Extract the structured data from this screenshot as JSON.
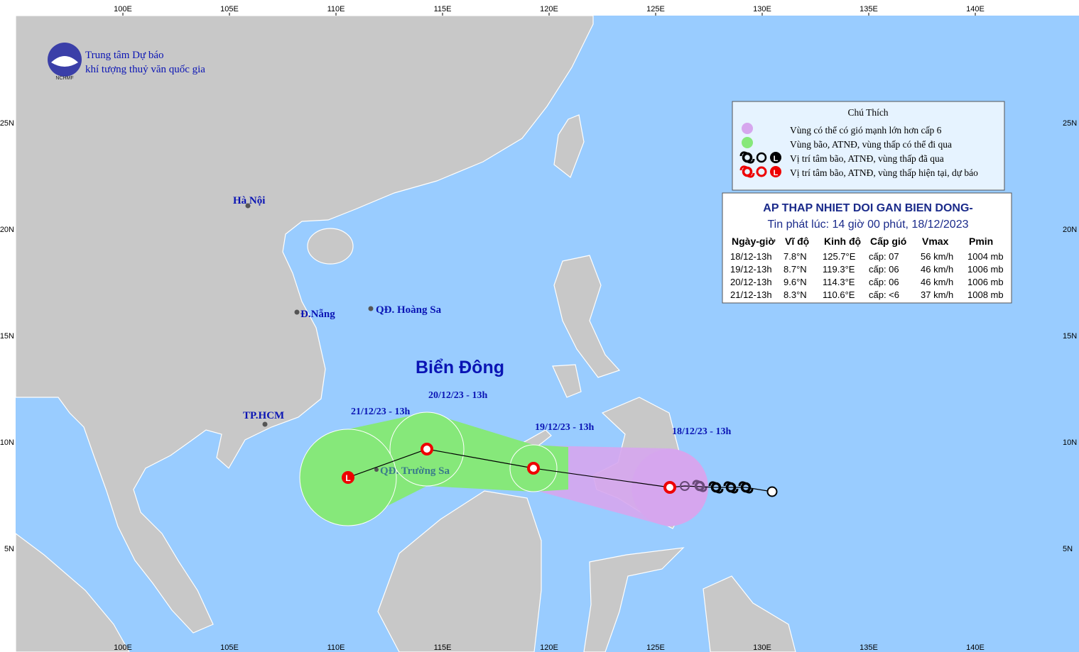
{
  "header": {
    "line1": "Trung tâm Dự báo",
    "line2": "khí tượng thuỷ văn quốc gia",
    "logo_text": "NCHMF"
  },
  "axes": {
    "longitude": [
      "100E",
      "105E",
      "110E",
      "115E",
      "120E",
      "125E",
      "130E",
      "135E",
      "140E"
    ],
    "latitude": [
      "25N",
      "20N",
      "15N",
      "10N",
      "5N"
    ]
  },
  "places": {
    "hanoi": "Hà Nội",
    "danang": "Đ.Nẵng",
    "hoangsa": "QĐ. Hoàng Sa",
    "hcm": "TP.HCM",
    "truongsa": "QĐ. Trường Sa",
    "sea": "Biển Đông"
  },
  "track_labels": [
    "18/12/23 - 13h",
    "19/12/23 - 13h",
    "20/12/23 - 13h",
    "21/12/23 - 13h"
  ],
  "symbol_letter": "L",
  "legend": {
    "title": "Chú Thích",
    "items": [
      "Vùng có thể có gió mạnh lớn hơn cấp 6",
      "Vùng bão, ATNĐ, vùng thấp có thể đi qua",
      "Vị trí tâm bão, ATNĐ, vùng thấp đã qua",
      "Vị trí tâm bão, ATNĐ, vùng thấp hiện tại, dự báo"
    ]
  },
  "bulletin": {
    "title": "AP THAP NHIET DOI GAN BIEN DONG-",
    "issued": "Tin phát lúc: 14 giờ 00 phút, 18/12/2023",
    "columns": [
      "Ngày-giờ",
      "Vĩ độ",
      "Kinh độ",
      "Cấp gió",
      "Vmax",
      "Pmin"
    ],
    "rows": [
      [
        "18/12-13h",
        "7.8°N",
        "125.7°E",
        "cấp: 07",
        "56 km/h",
        "1004 mb"
      ],
      [
        "19/12-13h",
        "8.7°N",
        "119.3°E",
        "cấp: 06",
        "46 km/h",
        "1006 mb"
      ],
      [
        "20/12-13h",
        "9.6°N",
        "114.3°E",
        "cấp: 06",
        "46 km/h",
        "1006 mb"
      ],
      [
        "21/12-13h",
        "8.3°N",
        "110.6°E",
        "cấp: <6",
        "37 km/h",
        "1008 mb"
      ]
    ]
  }
}
